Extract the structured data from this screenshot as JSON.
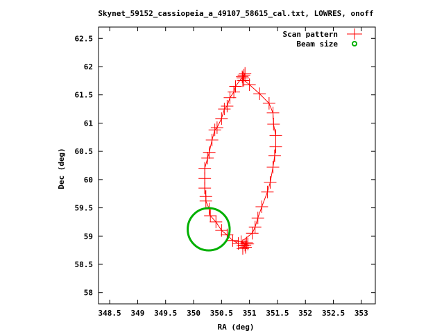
{
  "chart_data": {
    "type": "scatter",
    "title": "Skynet_59152_cassiopeia_a_49107_58615_cal.txt, LOWRES, onoff",
    "xlabel": "RA (deg)",
    "ylabel": "Dec (deg)",
    "xlim": [
      348.3,
      353.25
    ],
    "ylim": [
      57.8,
      62.7
    ],
    "xticks": [
      "348.5",
      "349",
      "349.5",
      "350",
      "350.5",
      "351",
      "351.5",
      "352",
      "352.5",
      "353"
    ],
    "yticks": [
      "58",
      "58.5",
      "59",
      "59.5",
      "60",
      "60.5",
      "61",
      "61.5",
      "62",
      "62.5"
    ],
    "grid": false,
    "legend_position": "top-right",
    "series": [
      {
        "name": "Scan pattern",
        "color": "#ff0000",
        "marker": "plus",
        "points": [
          [
            350.95,
            58.88
          ],
          [
            350.88,
            58.83
          ],
          [
            350.93,
            58.8
          ],
          [
            350.88,
            58.78
          ],
          [
            350.92,
            58.84
          ],
          [
            350.97,
            58.86
          ],
          [
            350.85,
            58.9
          ],
          [
            351.05,
            59.05
          ],
          [
            351.1,
            59.16
          ],
          [
            351.15,
            59.32
          ],
          [
            351.22,
            59.52
          ],
          [
            351.32,
            59.78
          ],
          [
            351.37,
            59.95
          ],
          [
            351.42,
            60.22
          ],
          [
            351.45,
            60.42
          ],
          [
            351.47,
            60.58
          ],
          [
            351.47,
            60.78
          ],
          [
            351.43,
            60.98
          ],
          [
            351.42,
            61.18
          ],
          [
            351.35,
            61.35
          ],
          [
            351.18,
            61.52
          ],
          [
            351.0,
            61.68
          ],
          [
            350.9,
            61.76
          ],
          [
            350.88,
            61.8
          ],
          [
            350.9,
            61.85
          ],
          [
            350.87,
            61.82
          ],
          [
            350.88,
            61.75
          ],
          [
            350.92,
            61.88
          ],
          [
            350.75,
            61.65
          ],
          [
            350.72,
            61.55
          ],
          [
            350.65,
            61.45
          ],
          [
            350.6,
            61.3
          ],
          [
            350.55,
            61.25
          ],
          [
            350.5,
            61.08
          ],
          [
            350.42,
            60.92
          ],
          [
            350.38,
            60.88
          ],
          [
            350.33,
            60.7
          ],
          [
            350.28,
            60.48
          ],
          [
            350.25,
            60.38
          ],
          [
            350.2,
            60.2
          ],
          [
            350.2,
            60.02
          ],
          [
            350.2,
            59.85
          ],
          [
            350.22,
            59.7
          ],
          [
            350.22,
            59.62
          ],
          [
            350.28,
            59.48
          ],
          [
            350.3,
            59.36
          ],
          [
            350.4,
            59.25
          ],
          [
            350.5,
            59.1
          ],
          [
            350.6,
            59.02
          ],
          [
            350.7,
            58.92
          ],
          [
            350.8,
            58.87
          ]
        ]
      },
      {
        "name": "Beam size",
        "color": "#00b000",
        "marker": "circle",
        "center": [
          350.27,
          59.12
        ],
        "radius_deg": 0.375
      }
    ]
  }
}
